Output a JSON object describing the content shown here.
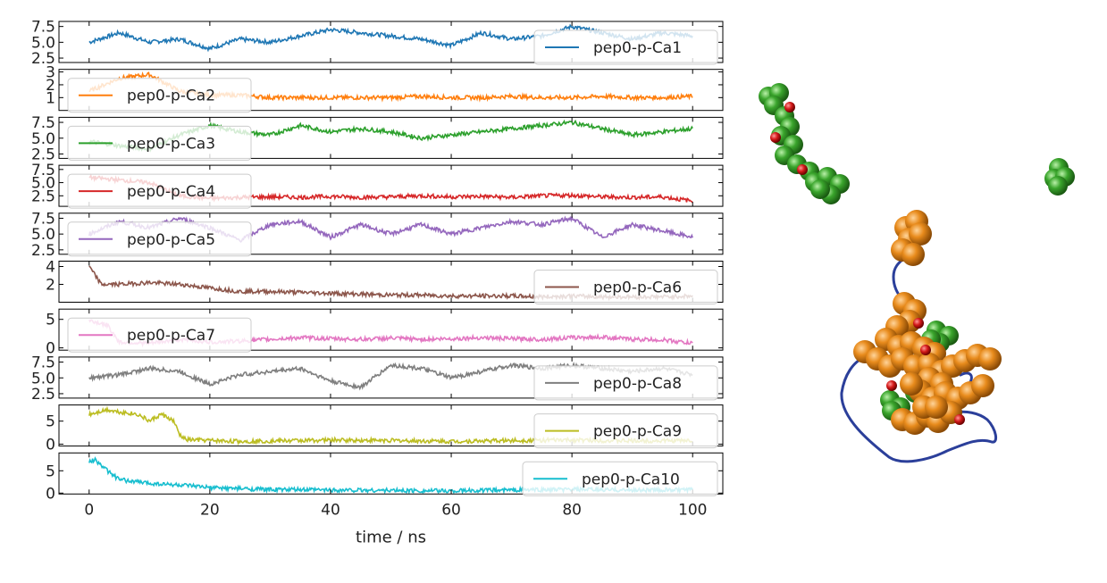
{
  "chart_data": {
    "type": "line",
    "xlabel": "time / ns",
    "xlim": [
      -5,
      105
    ],
    "xticks": [
      0,
      20,
      40,
      60,
      80,
      100
    ],
    "xtick_labels": [
      "0",
      "20",
      "40",
      "60",
      "80",
      "100"
    ],
    "panels": [
      {
        "name": "pep0-p-Ca1",
        "color": "#1f77b4",
        "legend": "right",
        "ylim": [
          1.8,
          8.3
        ],
        "yticks": [
          2.5,
          5.0,
          7.5
        ],
        "ytick_labels": [
          "2.5",
          "5.0",
          "7.5"
        ],
        "x": [
          0,
          5,
          10,
          15,
          20,
          25,
          30,
          35,
          40,
          45,
          50,
          55,
          60,
          65,
          70,
          75,
          80,
          85,
          90,
          95,
          100
        ],
        "y": [
          5.0,
          6.5,
          5.0,
          5.5,
          4.0,
          5.5,
          5.0,
          6.0,
          7.0,
          6.5,
          6.0,
          5.5,
          4.5,
          6.5,
          5.5,
          6.0,
          7.5,
          6.5,
          5.5,
          6.5,
          6.0
        ]
      },
      {
        "name": "pep0-p-Ca2",
        "color": "#ff7f0e",
        "legend": "left",
        "ylim": [
          0.0,
          3.2
        ],
        "yticks": [
          1,
          2,
          3
        ],
        "ytick_labels": [
          "1",
          "2",
          "3"
        ],
        "x": [
          0,
          5,
          10,
          15,
          20,
          25,
          30,
          35,
          40,
          45,
          50,
          55,
          60,
          65,
          70,
          75,
          80,
          85,
          90,
          95,
          100
        ],
        "y": [
          1.5,
          2.5,
          2.8,
          1.5,
          1.2,
          1.2,
          1.0,
          1.0,
          1.0,
          1.0,
          1.0,
          1.1,
          1.0,
          1.0,
          1.1,
          1.0,
          1.0,
          1.1,
          1.0,
          1.0,
          1.1
        ]
      },
      {
        "name": "pep0-p-Ca3",
        "color": "#2ca02c",
        "legend": "left",
        "ylim": [
          1.8,
          8.3
        ],
        "yticks": [
          2.5,
          5.0,
          7.5
        ],
        "ytick_labels": [
          "2.5",
          "5.0",
          "7.5"
        ],
        "x": [
          0,
          5,
          10,
          15,
          20,
          25,
          30,
          35,
          40,
          45,
          50,
          55,
          60,
          65,
          70,
          75,
          80,
          85,
          90,
          95,
          100
        ],
        "y": [
          4.5,
          3.8,
          3.3,
          5.5,
          7.0,
          6.0,
          5.5,
          7.0,
          6.0,
          6.5,
          6.0,
          5.0,
          5.5,
          6.0,
          6.5,
          7.0,
          7.5,
          6.5,
          5.5,
          6.0,
          6.5
        ]
      },
      {
        "name": "pep0-p-Ca4",
        "color": "#d62728",
        "legend": "left",
        "ylim": [
          0.5,
          8.3
        ],
        "yticks": [
          2.5,
          5.0,
          7.5
        ],
        "ytick_labels": [
          "2.5",
          "5.0",
          "7.5"
        ],
        "x": [
          0,
          5,
          10,
          15,
          20,
          25,
          30,
          35,
          40,
          45,
          50,
          55,
          60,
          65,
          70,
          75,
          80,
          85,
          90,
          95,
          100
        ],
        "y": [
          6.0,
          5.5,
          5.0,
          2.5,
          2.0,
          2.2,
          2.3,
          2.2,
          2.4,
          2.2,
          2.3,
          2.5,
          2.3,
          2.4,
          2.2,
          2.5,
          2.6,
          2.3,
          2.2,
          2.3,
          1.5
        ]
      },
      {
        "name": "pep0-p-Ca5",
        "color": "#9467bd",
        "legend": "left",
        "ylim": [
          1.8,
          8.3
        ],
        "yticks": [
          2.5,
          5.0,
          7.5
        ],
        "ytick_labels": [
          "2.5",
          "5.0",
          "7.5"
        ],
        "x": [
          0,
          5,
          10,
          15,
          20,
          25,
          30,
          35,
          40,
          45,
          50,
          55,
          60,
          65,
          70,
          75,
          80,
          85,
          90,
          95,
          100
        ],
        "y": [
          5.0,
          7.0,
          6.0,
          7.5,
          6.0,
          4.0,
          6.5,
          7.0,
          4.5,
          6.5,
          5.0,
          6.5,
          5.0,
          6.0,
          7.0,
          6.5,
          7.5,
          4.5,
          6.5,
          5.5,
          4.5
        ]
      },
      {
        "name": "pep0-p-Ca6",
        "color": "#8c564b",
        "legend": "right",
        "ylim": [
          0.0,
          4.6
        ],
        "yticks": [
          2,
          4
        ],
        "ytick_labels": [
          "2",
          "4"
        ],
        "x": [
          0,
          2,
          5,
          10,
          15,
          20,
          25,
          30,
          35,
          40,
          45,
          50,
          55,
          60,
          65,
          70,
          75,
          80,
          85,
          90,
          95,
          100
        ],
        "y": [
          4.0,
          2.0,
          2.0,
          2.2,
          2.0,
          1.6,
          1.2,
          1.2,
          1.1,
          1.0,
          0.9,
          0.8,
          0.8,
          0.7,
          0.7,
          0.7,
          0.6,
          0.7,
          0.6,
          0.6,
          0.6,
          0.7
        ]
      },
      {
        "name": "pep0-p-Ca7",
        "color": "#e377c2",
        "legend": "left",
        "ylim": [
          -0.4,
          6.8
        ],
        "yticks": [
          0,
          5
        ],
        "ytick_labels": [
          "0",
          "5"
        ],
        "x": [
          0,
          3,
          5,
          10,
          15,
          20,
          25,
          30,
          35,
          40,
          45,
          50,
          55,
          60,
          65,
          70,
          75,
          80,
          85,
          90,
          95,
          100
        ],
        "y": [
          4.8,
          4.0,
          1.0,
          0.8,
          1.5,
          1.0,
          1.2,
          1.5,
          1.8,
          1.6,
          1.5,
          1.7,
          1.5,
          1.6,
          1.8,
          1.6,
          1.5,
          1.8,
          1.9,
          1.5,
          1.4,
          0.8
        ]
      },
      {
        "name": "pep0-p-Ca8",
        "color": "#7f7f7f",
        "legend": "right",
        "ylim": [
          1.8,
          8.3
        ],
        "yticks": [
          2.5,
          5.0,
          7.5
        ],
        "ytick_labels": [
          "2.5",
          "5.0",
          "7.5"
        ],
        "x": [
          0,
          5,
          10,
          15,
          20,
          25,
          30,
          35,
          40,
          45,
          50,
          55,
          60,
          65,
          70,
          75,
          80,
          85,
          90,
          95,
          100
        ],
        "y": [
          5.0,
          5.5,
          6.5,
          6.0,
          4.0,
          5.5,
          6.0,
          6.5,
          4.5,
          3.5,
          7.0,
          6.5,
          5.0,
          6.0,
          7.0,
          6.5,
          7.0,
          6.5,
          6.0,
          6.5,
          5.5
        ]
      },
      {
        "name": "pep0-p-Ca9",
        "color": "#bcbd22",
        "legend": "right",
        "ylim": [
          -0.4,
          8.5
        ],
        "yticks": [
          0,
          5
        ],
        "ytick_labels": [
          "0",
          "5"
        ],
        "x": [
          0,
          3,
          5,
          8,
          10,
          12,
          14,
          15,
          16,
          20,
          25,
          30,
          40,
          50,
          60,
          70,
          80,
          90,
          100
        ],
        "y": [
          6.5,
          7.5,
          7.0,
          6.5,
          5.0,
          6.5,
          5.0,
          2.0,
          1.0,
          0.8,
          0.6,
          0.7,
          0.9,
          0.8,
          0.6,
          0.8,
          0.9,
          0.7,
          0.8
        ]
      },
      {
        "name": "pep0-p-Ca10",
        "color": "#17becf",
        "legend": "right",
        "ylim": [
          -0.2,
          9.0
        ],
        "yticks": [
          0,
          5
        ],
        "ytick_labels": [
          "0",
          "5"
        ],
        "x": [
          0,
          1,
          3,
          5,
          10,
          15,
          20,
          25,
          30,
          40,
          50,
          60,
          70,
          80,
          90,
          100
        ],
        "y": [
          7.0,
          7.5,
          5.0,
          3.0,
          2.2,
          1.8,
          1.2,
          1.0,
          0.8,
          0.7,
          0.6,
          0.5,
          0.7,
          0.8,
          0.7,
          0.7
        ]
      }
    ]
  },
  "structure": {
    "type": "molecular-rendering",
    "colors": {
      "green": "#3aa52c",
      "orange": "#e88b1c",
      "red": "#d41a1a",
      "backbone": "#2b3f9a"
    }
  }
}
